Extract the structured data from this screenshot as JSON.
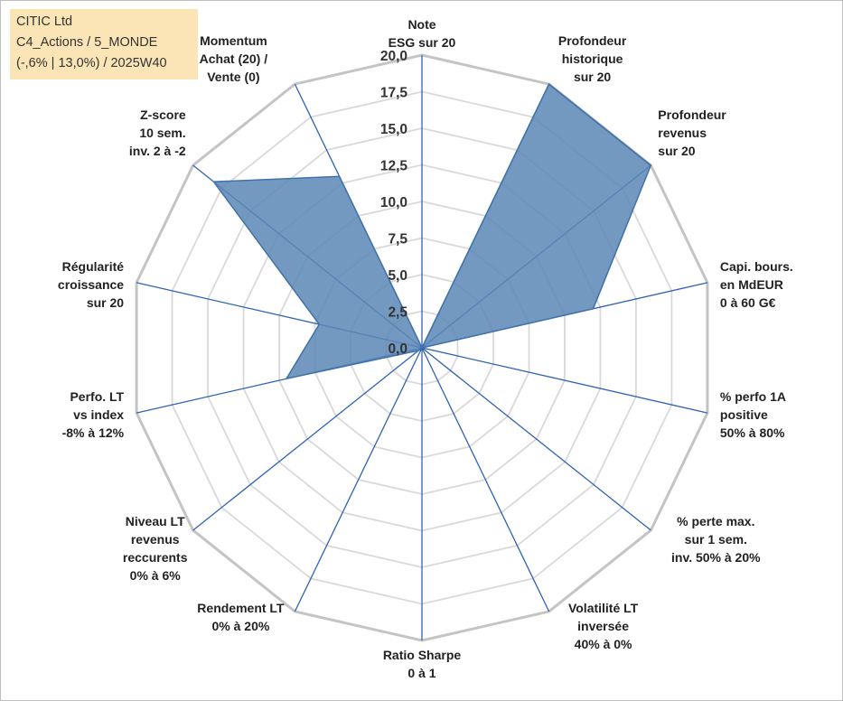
{
  "info_box": {
    "line1": "CITIC Ltd",
    "line2": "C4_Actions / 5_MONDE",
    "line3": "(-,6% | 13,0%) / 2025W40"
  },
  "colors": {
    "fill": "#5b87b6",
    "stroke": "#3f72a8",
    "spoke": "#2f63b0",
    "grid_outer": "#c4c4c4",
    "grid_inner": "#d9d9d9",
    "info_bg": "#fbe5b6"
  },
  "chart_data": {
    "type": "radar",
    "rmin": 0,
    "rmax": 20,
    "tick_step": 2.5,
    "tick_labels": [
      "0,0",
      "2,5",
      "5,0",
      "7,5",
      "10,0",
      "12,5",
      "15,0",
      "17,5",
      "20,0"
    ],
    "axes": [
      {
        "label": [
          "Note",
          "ESG sur 20"
        ],
        "value": 0
      },
      {
        "label": [
          "Profondeur",
          "historique",
          "sur 20"
        ],
        "value": 20
      },
      {
        "label": [
          "Profondeur",
          "revenus",
          "sur 20"
        ],
        "value": 20
      },
      {
        "label": [
          "Capi. bours.",
          "en MdEUR",
          "0 à 60 G€"
        ],
        "value": 12
      },
      {
        "label": [
          "% perfo 1A",
          "positive",
          "50% à 80%"
        ],
        "value": 0
      },
      {
        "label": [
          "% perte max.",
          "sur 1 sem.",
          "inv. 50% à 20%"
        ],
        "value": 0
      },
      {
        "label": [
          "Volatilité LT",
          "inversée",
          "40% à 0%"
        ],
        "value": 0
      },
      {
        "label": [
          "Ratio Sharpe",
          "0 à 1"
        ],
        "value": 0
      },
      {
        "label": [
          "Rendement LT",
          "0% à 20%"
        ],
        "value": 0
      },
      {
        "label": [
          "Niveau LT",
          "revenus",
          "reccurents",
          "0% à 6%"
        ],
        "value": 0.3
      },
      {
        "label": [
          "Perfo. LT",
          "vs index",
          "-8% à 12%"
        ],
        "value": 9.5
      },
      {
        "label": [
          "Régularité",
          "croissance",
          "sur 20"
        ],
        "value": 7.2
      },
      {
        "label": [
          "Z-score",
          "10 sem.",
          "inv. 2 à -2"
        ],
        "value": 18.2
      },
      {
        "label": [
          "Momentum",
          "Achat (20) /",
          "Vente (0)"
        ],
        "value": 13
      }
    ]
  }
}
